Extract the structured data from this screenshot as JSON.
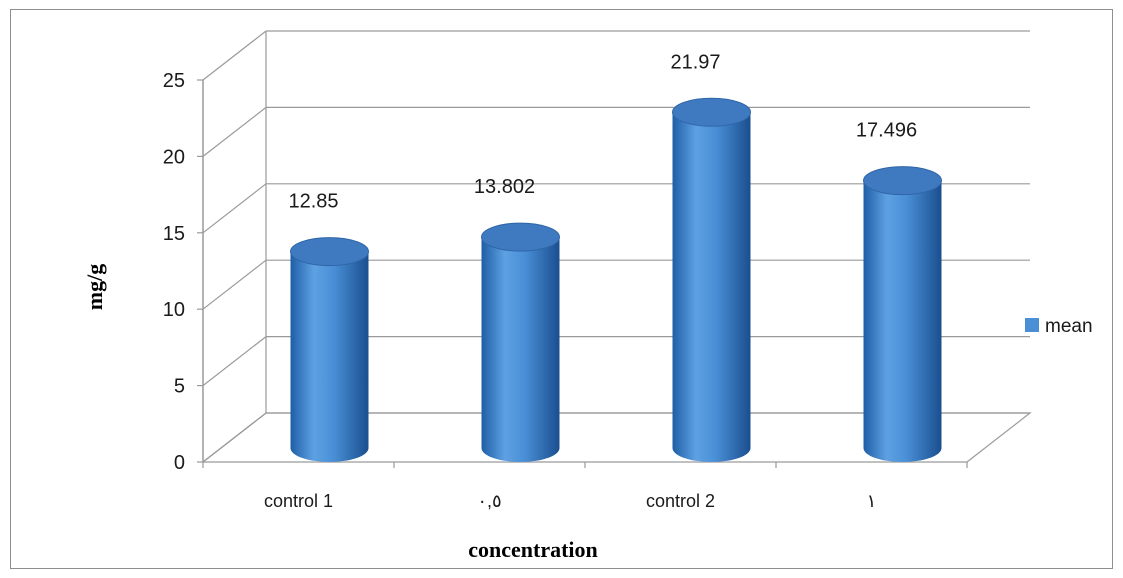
{
  "chart_data": {
    "type": "bar",
    "style": "3d-cylinder",
    "categories": [
      "control 1",
      "٠,٥",
      "control 2",
      "١"
    ],
    "series": [
      {
        "name": "mean",
        "values": [
          12.85,
          13.802,
          21.97,
          17.496
        ],
        "color": "#4a8fd6"
      }
    ],
    "data_labels": [
      "12.85",
      "13.802",
      "21.97",
      "17.496"
    ],
    "xlabel": "concentration",
    "ylabel": "mg/g",
    "ylim": [
      0,
      25
    ],
    "yticks": [
      "0",
      "5",
      "10",
      "15",
      "20",
      "25"
    ],
    "grid": true,
    "legend_position": "right"
  },
  "colors": {
    "bar": "#4a8fd6",
    "bar_dark": "#1f5ea6",
    "bar_top": "#3f79bf",
    "grid": "#9a9a9a",
    "frame": "#8e8e8e"
  }
}
